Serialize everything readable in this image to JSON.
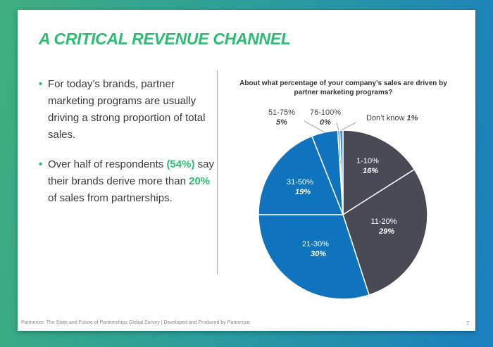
{
  "slide": {
    "title": "A CRITICAL REVENUE CHANNEL",
    "bullet1": "For today’s brands, partner marketing programs are usually driving a strong proportion of total sales.",
    "bullet2_pre": "Over half of respondents ",
    "bullet2_hl1": "(54%)",
    "bullet2_mid": " say their brands derive more than ",
    "bullet2_hl2": "20%",
    "bullet2_post": " of sales from  partnerships.",
    "footer": "Partnerize: The State and Future of Partnerships Global Survey | Developed and Produced by Partnerize",
    "page_number": "7"
  },
  "chart_data": {
    "type": "pie",
    "title": "About what percentage of your company’s sales are driven by partner marketing programs?",
    "slices": [
      {
        "label": "1-10%",
        "value": 16,
        "value_label": "16%",
        "color": "#4a4a56"
      },
      {
        "label": "11-20%",
        "value": 29,
        "value_label": "29%",
        "color": "#4a4a56"
      },
      {
        "label": "21-30%",
        "value": 30,
        "value_label": "30%",
        "color": "#0f74bd"
      },
      {
        "label": "31-50%",
        "value": 19,
        "value_label": "19%",
        "color": "#0f74bd"
      },
      {
        "label": "51-75%",
        "value": 5,
        "value_label": "5%",
        "color": "#0f74bd"
      },
      {
        "label": "76-100%",
        "value": 0.4,
        "value_label": "0%",
        "color": "#3a8fd0"
      },
      {
        "label": "Don’t know",
        "value": 0.6,
        "value_label": "1%",
        "color": "#3a8fd0"
      }
    ]
  }
}
